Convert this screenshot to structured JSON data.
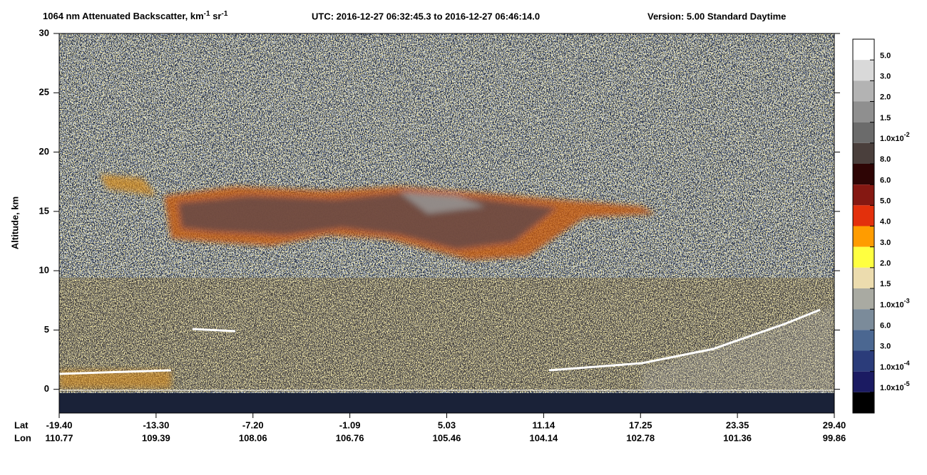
{
  "chart_data": {
    "type": "heatmap",
    "title_parts": [
      {
        "text": "1064 nm Attenuated Backscatter, km"
      },
      {
        "text": "-1",
        "sup": true
      },
      {
        "text": " sr"
      },
      {
        "text": "-1",
        "sup": true
      }
    ],
    "utc": "UTC:  2016-12-27 06:32:45.3  to  2016-12-27 06:46:14.0",
    "version": "Version: 5.00  Standard  Daytime",
    "y_label": "Altitude, km",
    "ylim": [
      -2,
      30
    ],
    "yticks": [
      0,
      5,
      10,
      15,
      20,
      25,
      30
    ],
    "x_rows": [
      {
        "name": "Lat",
        "labels": [
          "-19.40",
          "-13.30",
          "-7.20",
          "-1.09",
          "5.03",
          "11.14",
          "17.25",
          "23.35",
          "29.40"
        ]
      },
      {
        "name": "Lon",
        "labels": [
          "110.77",
          "109.39",
          "108.06",
          "106.76",
          "105.46",
          "104.14",
          "102.78",
          "101.36",
          "99.86"
        ]
      }
    ],
    "colorbar": {
      "colors": [
        "#ffffff",
        "#d9d9d9",
        "#b3b3b3",
        "#8f8f8f",
        "#6b6b6b",
        "#4a3f3c",
        "#2e0505",
        "#851812",
        "#e3300c",
        "#ff9c00",
        "#ffff40",
        "#ecdcae",
        "#a9aaa2",
        "#7b8b9a",
        "#4b6791",
        "#2b3c7a",
        "#1b1b62",
        "#000000"
      ],
      "labels": [
        {
          "text": "5.0"
        },
        {
          "text": "3.0"
        },
        {
          "text": "2.0"
        },
        {
          "text": "1.5"
        },
        {
          "text": "1.0x10",
          "exp": "-2"
        },
        {
          "text": "8.0"
        },
        {
          "text": "6.0"
        },
        {
          "text": "5.0"
        },
        {
          "text": "4.0"
        },
        {
          "text": "3.0"
        },
        {
          "text": "2.0"
        },
        {
          "text": "1.5"
        },
        {
          "text": "1.0x10",
          "exp": "-3"
        },
        {
          "text": "6.0"
        },
        {
          "text": "3.0"
        },
        {
          "text": "1.0x10",
          "exp": "-4"
        },
        {
          "text": "1.0x10",
          "exp": "-5"
        }
      ]
    }
  }
}
